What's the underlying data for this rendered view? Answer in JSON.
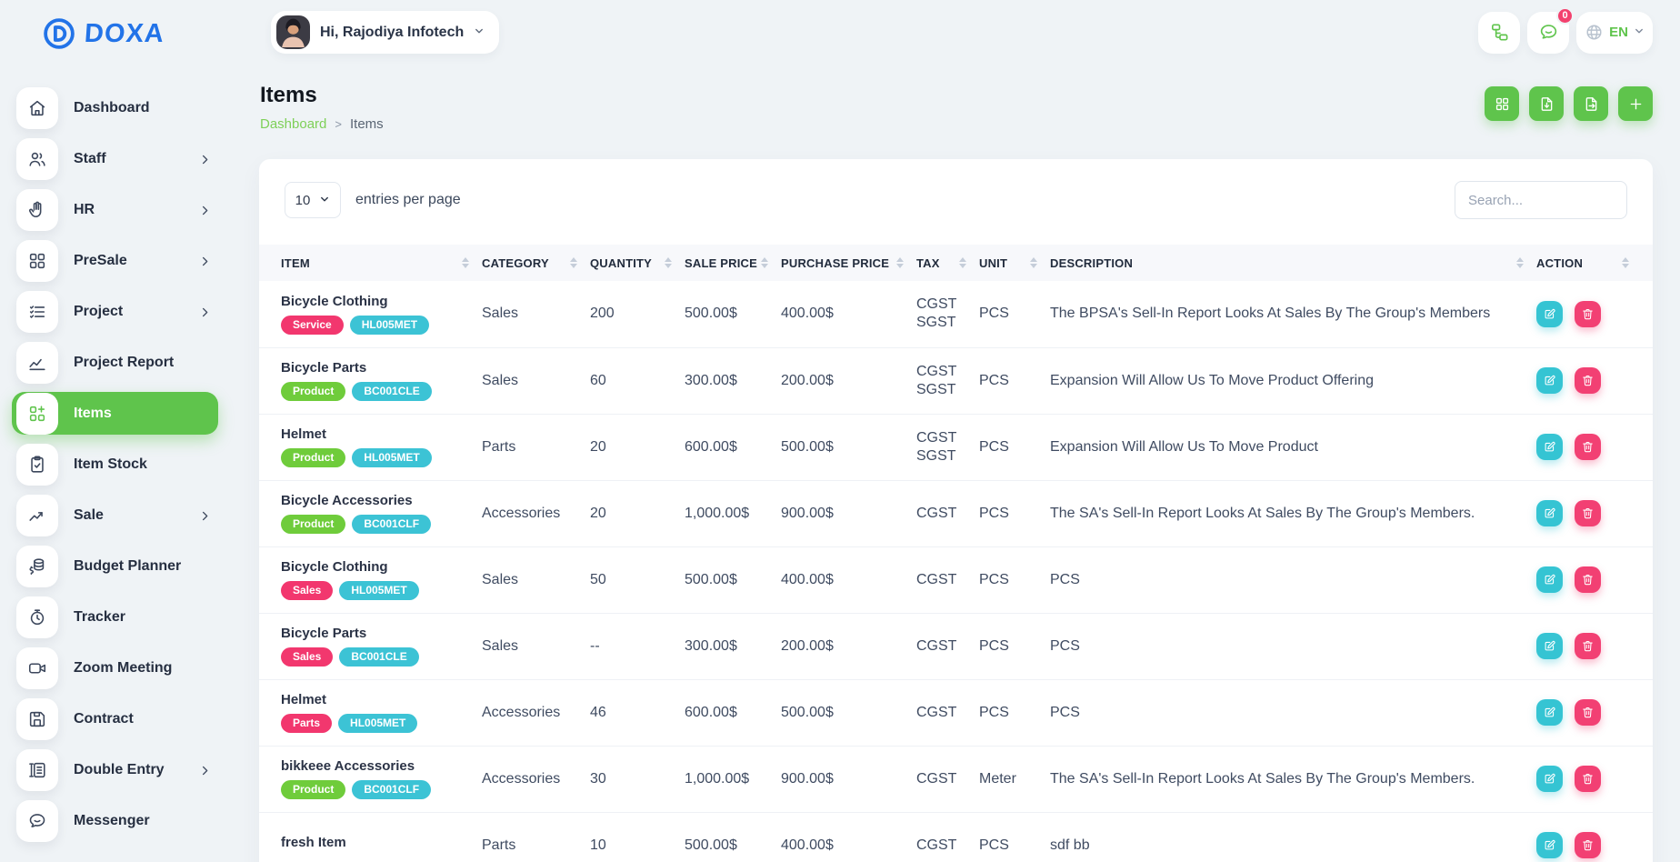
{
  "brand": {
    "name": "DOXA"
  },
  "header": {
    "greeting": "Hi, Rajodiya Infotech",
    "buttons": [
      {
        "name": "plan-tree-button",
        "icon": "tree-icon"
      },
      {
        "name": "messages-button",
        "icon": "chat-bubble-icon",
        "badge": "0"
      }
    ],
    "language": {
      "label": "EN",
      "icon": "globe-icon"
    }
  },
  "sidebar": {
    "items": [
      {
        "label": "Dashboard",
        "icon": "home-icon",
        "has_children": false,
        "active": false
      },
      {
        "label": "Staff",
        "icon": "users-icon",
        "has_children": true,
        "active": false
      },
      {
        "label": "HR",
        "icon": "hand-icon",
        "has_children": true,
        "active": false
      },
      {
        "label": "PreSale",
        "icon": "grid-icon",
        "has_children": true,
        "active": false
      },
      {
        "label": "Project",
        "icon": "task-list-icon",
        "has_children": true,
        "active": false
      },
      {
        "label": "Project Report",
        "icon": "chart-line-icon",
        "has_children": false,
        "active": false
      },
      {
        "label": "Items",
        "icon": "grid-plus-icon",
        "has_children": false,
        "active": true
      },
      {
        "label": "Item Stock",
        "icon": "clipboard-check-icon",
        "has_children": false,
        "active": false
      },
      {
        "label": "Sale",
        "icon": "trending-up-icon",
        "has_children": true,
        "active": false
      },
      {
        "label": "Budget Planner",
        "icon": "coins-icon",
        "has_children": false,
        "active": false
      },
      {
        "label": "Tracker",
        "icon": "stopwatch-icon",
        "has_children": false,
        "active": false
      },
      {
        "label": "Zoom Meeting",
        "icon": "video-camera-icon",
        "has_children": false,
        "active": false
      },
      {
        "label": "Contract",
        "icon": "save-icon",
        "has_children": false,
        "active": false
      },
      {
        "label": "Double Entry",
        "icon": "ledger-icon",
        "has_children": true,
        "active": false
      },
      {
        "label": "Messenger",
        "icon": "chat-bubble-icon",
        "has_children": false,
        "active": false
      }
    ]
  },
  "page": {
    "title": "Items",
    "breadcrumb": {
      "link": "Dashboard",
      "separator": ">",
      "current": "Items"
    },
    "actions": [
      {
        "name": "grid-view-button",
        "icon": "th-grid-icon"
      },
      {
        "name": "import-button",
        "icon": "file-import-icon"
      },
      {
        "name": "export-button",
        "icon": "file-export-icon"
      },
      {
        "name": "create-item-button",
        "icon": "plus-icon"
      }
    ]
  },
  "toolbar": {
    "entries_value": "10",
    "entries_label": "entries per page",
    "search_placeholder": "Search..."
  },
  "table": {
    "columns": [
      "ITEM",
      "CATEGORY",
      "QUANTITY",
      "SALE PRICE",
      "PURCHASE PRICE",
      "TAX",
      "UNIT",
      "DESCRIPTION",
      "ACTION"
    ],
    "rows": [
      {
        "item": "Bicycle Clothing",
        "badges": [
          {
            "text": "Service",
            "color": "pink"
          },
          {
            "text": "HL005MET",
            "color": "cyan"
          }
        ],
        "category": "Sales",
        "quantity": "200",
        "sale_price": "500.00$",
        "purchase_price": "400.00$",
        "tax": [
          "CGST",
          "SGST"
        ],
        "unit": "PCS",
        "description": "The BPSA's Sell-In Report Looks At Sales By The Group's Members"
      },
      {
        "item": "Bicycle Parts",
        "badges": [
          {
            "text": "Product",
            "color": "green"
          },
          {
            "text": "BC001CLE",
            "color": "cyan"
          }
        ],
        "category": "Sales",
        "quantity": "60",
        "sale_price": "300.00$",
        "purchase_price": "200.00$",
        "tax": [
          "CGST",
          "SGST"
        ],
        "unit": "PCS",
        "description": "Expansion Will Allow Us To Move Product Offering"
      },
      {
        "item": "Helmet",
        "badges": [
          {
            "text": "Product",
            "color": "green"
          },
          {
            "text": "HL005MET",
            "color": "cyan"
          }
        ],
        "category": "Parts",
        "quantity": "20",
        "sale_price": "600.00$",
        "purchase_price": "500.00$",
        "tax": [
          "CGST",
          "SGST"
        ],
        "unit": "PCS",
        "description": "Expansion Will Allow Us To Move Product"
      },
      {
        "item": "Bicycle Accessories",
        "badges": [
          {
            "text": "Product",
            "color": "green"
          },
          {
            "text": "BC001CLF",
            "color": "cyan"
          }
        ],
        "category": "Accessories",
        "quantity": "20",
        "sale_price": "1,000.00$",
        "purchase_price": "900.00$",
        "tax": [
          "CGST"
        ],
        "unit": "PCS",
        "description": "The SA's Sell-In Report Looks At Sales By The Group's Members."
      },
      {
        "item": "Bicycle Clothing",
        "badges": [
          {
            "text": "Sales",
            "color": "pink"
          },
          {
            "text": "HL005MET",
            "color": "cyan"
          }
        ],
        "category": "Sales",
        "quantity": "50",
        "sale_price": "500.00$",
        "purchase_price": "400.00$",
        "tax": [
          "CGST"
        ],
        "unit": "PCS",
        "description": "PCS"
      },
      {
        "item": "Bicycle Parts",
        "badges": [
          {
            "text": "Sales",
            "color": "pink"
          },
          {
            "text": "BC001CLE",
            "color": "cyan"
          }
        ],
        "category": "Sales",
        "quantity": "--",
        "sale_price": "300.00$",
        "purchase_price": "200.00$",
        "tax": [
          "CGST"
        ],
        "unit": "PCS",
        "description": "PCS"
      },
      {
        "item": "Helmet",
        "badges": [
          {
            "text": "Parts",
            "color": "pink"
          },
          {
            "text": "HL005MET",
            "color": "cyan"
          }
        ],
        "category": "Accessories",
        "quantity": "46",
        "sale_price": "600.00$",
        "purchase_price": "500.00$",
        "tax": [
          "CGST"
        ],
        "unit": "PCS",
        "description": "PCS"
      },
      {
        "item": "bikkeee Accessories",
        "badges": [
          {
            "text": "Product",
            "color": "green"
          },
          {
            "text": "BC001CLF",
            "color": "cyan"
          }
        ],
        "category": "Accessories",
        "quantity": "30",
        "sale_price": "1,000.00$",
        "purchase_price": "900.00$",
        "tax": [
          "CGST"
        ],
        "unit": "Meter",
        "description": "The SA's Sell-In Report Looks At Sales By The Group's Members."
      },
      {
        "item": "fresh Item",
        "badges": [],
        "category": "Parts",
        "quantity": "10",
        "sale_price": "500.00$",
        "purchase_price": "400.00$",
        "tax": [
          "CGST"
        ],
        "unit": "PCS",
        "description": "sdf bb"
      }
    ]
  },
  "colors": {
    "primary_green": "#5fc44c",
    "breadcrumb_green": "#7ed058",
    "logo_blue": "#2273e8",
    "badge_pink": "#f2376e",
    "badge_green": "#6fcc3b",
    "badge_cyan": "#3cc3d5",
    "edit_teal": "#35c4d3",
    "delete_pink": "#f24073",
    "notification_red": "#f3416e",
    "background": "#eff3f6"
  }
}
